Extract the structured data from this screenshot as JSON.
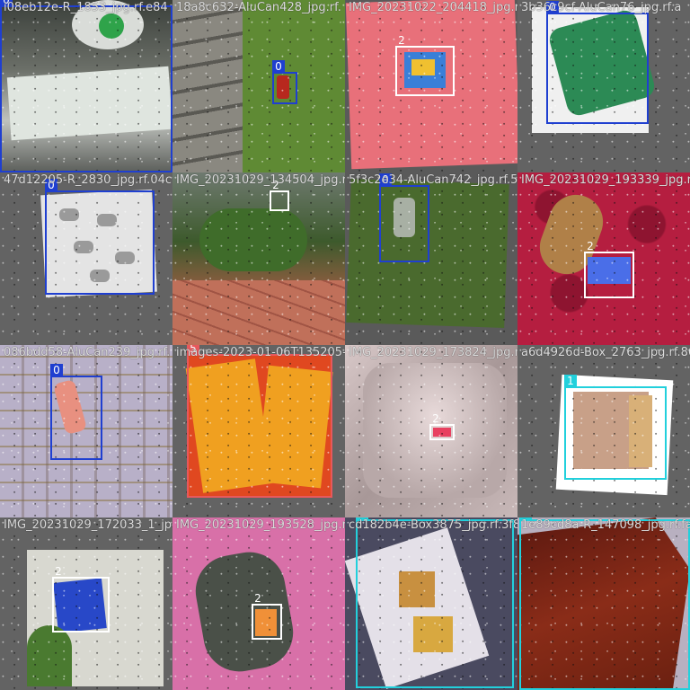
{
  "classes": {
    "0": {
      "label": "0",
      "color": "#1f3fd0"
    },
    "1": {
      "label": "1",
      "color": "#22d0dc"
    },
    "2": {
      "label": "2",
      "color": "#ffffff"
    },
    "5": {
      "label": "5",
      "color": "#e8585c"
    }
  },
  "tiles": [
    {
      "title": "i08eb12e-R_1853_jpg.rf.e84",
      "scene": "Cans on table",
      "label_class": "0"
    },
    {
      "title": "18a8c632-AluCan428_jpg.rf.",
      "scene": "Can on grass",
      "label_class": "0"
    },
    {
      "title": "IMG_20231022_204418_jpg.rf.",
      "scene": "Snack pack on pink cloth",
      "label_class": "2"
    },
    {
      "title": "3b36c9cf-AluCan76_jpg.rf.a",
      "scene": "Green can",
      "label_class": "0"
    },
    {
      "title": "47d12205-R_2830_jpg.rf.04c",
      "scene": "Many cans on card",
      "label_class": "0"
    },
    {
      "title": "IMG_20231029_134504_jpg.rf.",
      "scene": "Garden plants",
      "label_class": "2"
    },
    {
      "title": "5f3c2e34-AluCan742_jpg.rf.5",
      "scene": "Can on lawn",
      "label_class": "0"
    },
    {
      "title": "IMG_20231029_193339_jpg.rf.a",
      "scene": "Wrapper on red sofa",
      "label_class": "2"
    },
    {
      "title": "086bdd58-AluCan239_jpg.rf.",
      "scene": "Can on plaid",
      "label_class": "0"
    },
    {
      "title": "images-2023-01-06T135205-56",
      "scene": "Instant noodle pack",
      "label_class": "5"
    },
    {
      "title": "IMG_20231029_173824_jpg.rf.",
      "scene": "Wrapper on sofa",
      "label_class": "2"
    },
    {
      "title": "a6d4926d-Box_2763_jpg.rf.869",
      "scene": "Cardboard box",
      "label_class": "1"
    },
    {
      "title": "IMG_20231029_172033_1_jpg",
      "scene": "Packet in plant",
      "label_class": "2"
    },
    {
      "title": "IMG_20231029_193528_jpg.rf.",
      "scene": "Wrapper on fabric",
      "label_class": "2"
    },
    {
      "title": "cd182b4e-Box3875_jpg.rf.3f8",
      "scene": "Open food box",
      "label_class": "1"
    },
    {
      "title": "1e89cd8a-R_147098_jpg.rf.fa3",
      "scene": "Brown box",
      "label_class": "1"
    }
  ]
}
